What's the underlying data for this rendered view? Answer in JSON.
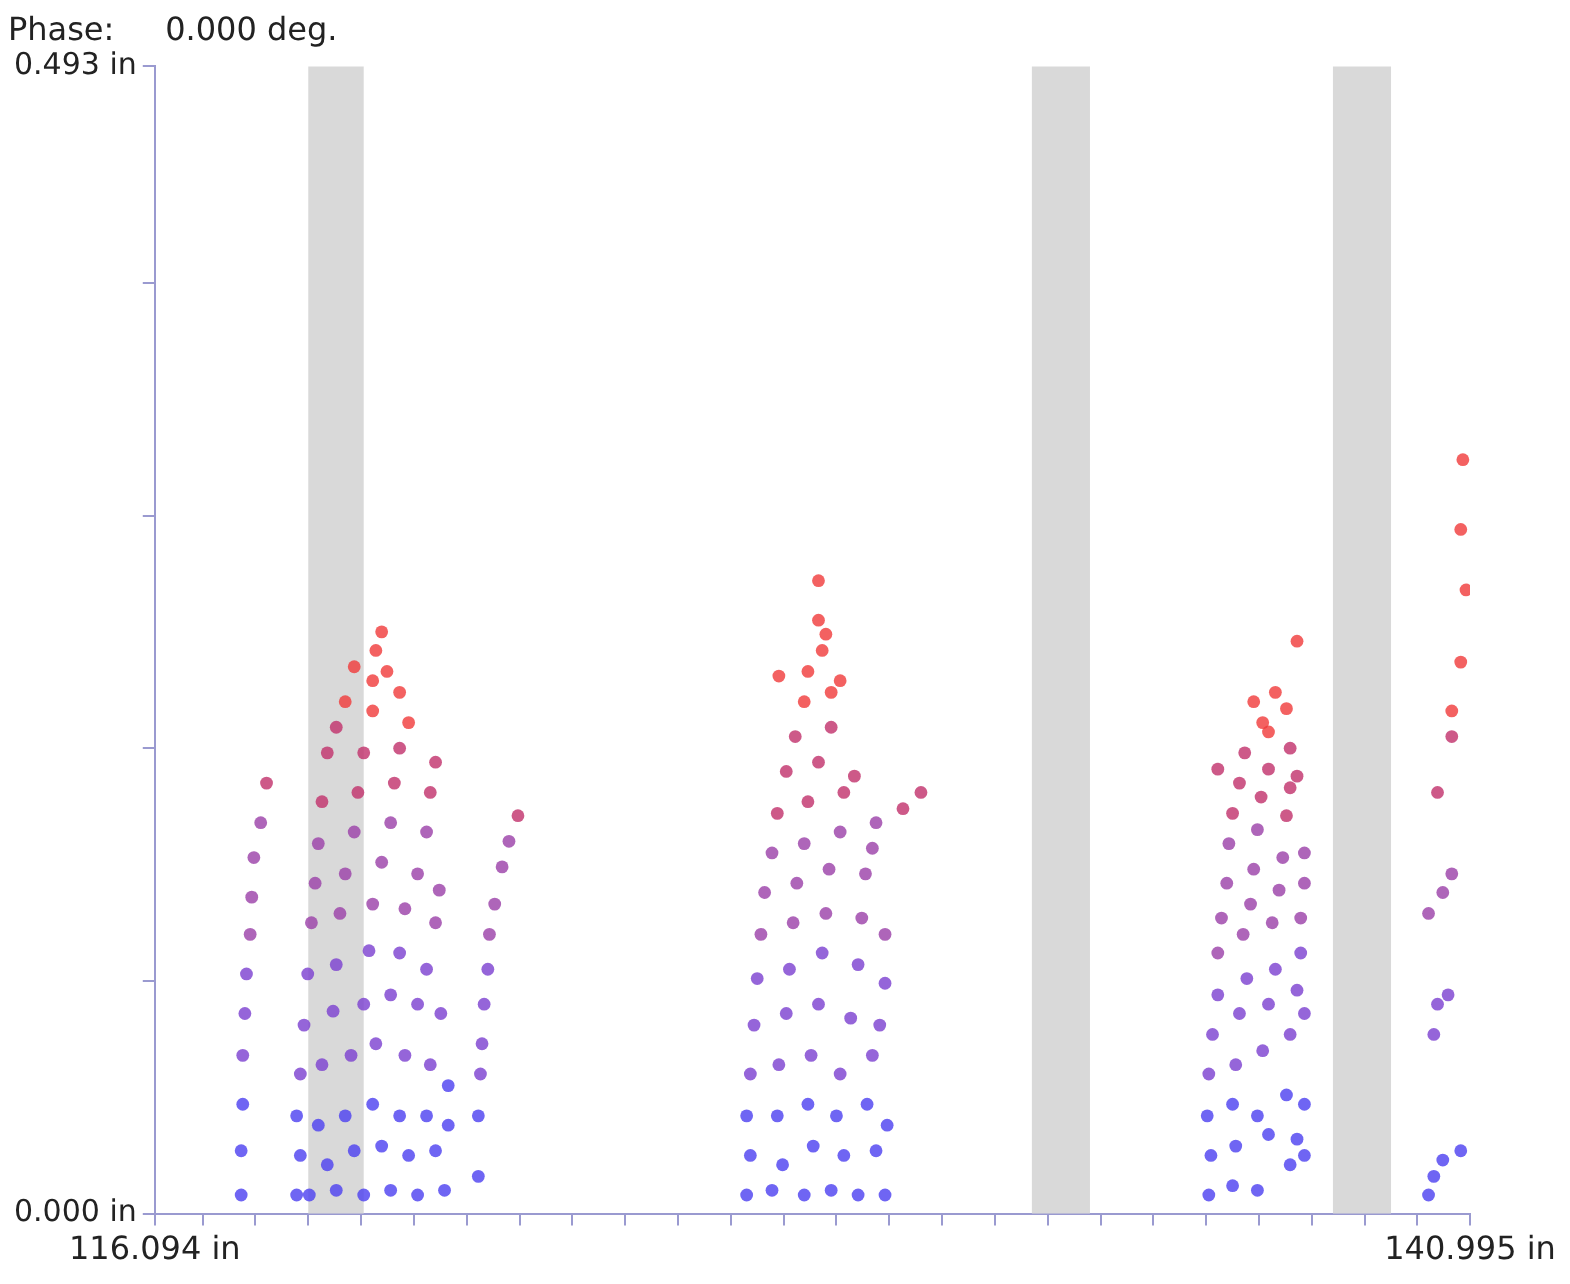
{
  "chart_data": {
    "type": "scatter",
    "title": "Phase:     0.000 deg.",
    "xlim": [
      116.094,
      140.995
    ],
    "ylim": [
      0,
      0.493
    ],
    "xticks": [
      {
        "value": 116.094,
        "label": "116.094 in"
      },
      {
        "value": 117,
        "label": null
      },
      {
        "value": 118,
        "label": null
      },
      {
        "value": 119,
        "label": null
      },
      {
        "value": 120,
        "label": null
      },
      {
        "value": 121,
        "label": null
      },
      {
        "value": 122,
        "label": null
      },
      {
        "value": 123,
        "label": null
      },
      {
        "value": 124,
        "label": null
      },
      {
        "value": 125,
        "label": null
      },
      {
        "value": 126,
        "label": null
      },
      {
        "value": 127,
        "label": null
      },
      {
        "value": 128,
        "label": null
      },
      {
        "value": 129,
        "label": null
      },
      {
        "value": 130,
        "label": null
      },
      {
        "value": 131,
        "label": null
      },
      {
        "value": 132,
        "label": null
      },
      {
        "value": 133,
        "label": null
      },
      {
        "value": 134,
        "label": null
      },
      {
        "value": 135,
        "label": null
      },
      {
        "value": 136,
        "label": null
      },
      {
        "value": 137,
        "label": null
      },
      {
        "value": 138,
        "label": null
      },
      {
        "value": 139,
        "label": null
      },
      {
        "value": 140,
        "label": null
      },
      {
        "value": 140.995,
        "label": "140.995 in"
      }
    ],
    "yticks": [
      {
        "value": 0,
        "label": "0.000 in"
      },
      {
        "value": 0.1,
        "label": null
      },
      {
        "value": 0.2,
        "label": null
      },
      {
        "value": 0.3,
        "label": null
      },
      {
        "value": 0.4,
        "label": null
      },
      {
        "value": 0.493,
        "label": "0.493 in"
      }
    ],
    "grid": false,
    "legend": false,
    "marker": "circle",
    "bands": [
      {
        "axis": "x",
        "from": 119.0,
        "to": 120.05,
        "label": null,
        "color": "#d9d9d9"
      },
      {
        "axis": "x",
        "from": 132.7,
        "to": 133.8,
        "label": null,
        "color": "#d9d9d9"
      },
      {
        "axis": "x",
        "from": 138.4,
        "to": 139.5,
        "label": null,
        "color": "#d9d9d9"
      }
    ],
    "series": [
      {
        "color": "#4b3ef0",
        "x": [
          117.73,
          117.73,
          117.76,
          118.78,
          119.02,
          119.53,
          120.05,
          120.56,
          121.07,
          121.58,
          118.85,
          119.36,
          119.87,
          120.39,
          120.9,
          121.41,
          118.78,
          119.19,
          119.7,
          120.22,
          120.73,
          121.24,
          121.65,
          121.65,
          122.22,
          122.22,
          127.3,
          127.78,
          128.39,
          128.9,
          129.41,
          129.92,
          127.37,
          127.98,
          128.56,
          129.14,
          129.75,
          127.3,
          127.88,
          128.46,
          129.0,
          129.58,
          129.96,
          136.05,
          136.5,
          136.97,
          137.59,
          137.86,
          136.09,
          136.56,
          137.18,
          137.72,
          136.02,
          136.5,
          136.97,
          137.52,
          137.86,
          140.21,
          140.31,
          140.48,
          140.82
        ],
        "values": [
          0.008,
          0.027,
          0.047,
          0.008,
          0.008,
          0.01,
          0.008,
          0.01,
          0.008,
          0.01,
          0.025,
          0.021,
          0.027,
          0.029,
          0.025,
          0.027,
          0.042,
          0.038,
          0.042,
          0.047,
          0.042,
          0.042,
          0.038,
          0.055,
          0.016,
          0.042,
          0.008,
          0.01,
          0.008,
          0.01,
          0.008,
          0.008,
          0.025,
          0.021,
          0.029,
          0.025,
          0.027,
          0.042,
          0.042,
          0.047,
          0.042,
          0.047,
          0.038,
          0.008,
          0.012,
          0.01,
          0.021,
          0.025,
          0.025,
          0.029,
          0.034,
          0.032,
          0.042,
          0.047,
          0.042,
          0.051,
          0.047,
          0.008,
          0.016,
          0.023,
          0.027
        ]
      },
      {
        "color": "#7b3fd0",
        "x": [
          117.76,
          117.8,
          117.83,
          118.85,
          119.26,
          119.81,
          120.28,
          120.83,
          121.31,
          118.92,
          119.47,
          120.05,
          120.56,
          121.07,
          121.51,
          118.99,
          119.53,
          120.15,
          120.73,
          121.24,
          122.26,
          122.29,
          122.33,
          122.4,
          127.37,
          127.91,
          128.52,
          129.07,
          129.68,
          127.44,
          128.05,
          128.66,
          129.27,
          129.82,
          127.5,
          128.11,
          128.73,
          129.41,
          129.92,
          136.05,
          136.56,
          137.07,
          137.59,
          137.86,
          136.12,
          136.63,
          137.18,
          137.72,
          136.22,
          136.77,
          137.31,
          137.79,
          140.31,
          140.38,
          140.58
        ],
        "values": [
          0.068,
          0.086,
          0.103,
          0.06,
          0.064,
          0.068,
          0.073,
          0.068,
          0.064,
          0.081,
          0.087,
          0.09,
          0.094,
          0.09,
          0.086,
          0.103,
          0.107,
          0.113,
          0.112,
          0.105,
          0.06,
          0.073,
          0.09,
          0.105,
          0.06,
          0.064,
          0.068,
          0.06,
          0.068,
          0.081,
          0.086,
          0.09,
          0.084,
          0.081,
          0.101,
          0.105,
          0.112,
          0.107,
          0.099,
          0.06,
          0.064,
          0.07,
          0.077,
          0.086,
          0.077,
          0.086,
          0.09,
          0.096,
          0.094,
          0.101,
          0.105,
          0.112,
          0.077,
          0.09,
          0.094
        ]
      },
      {
        "color": "#9a3fa8",
        "x": [
          117.9,
          117.93,
          117.97,
          118.1,
          119.06,
          119.6,
          120.22,
          120.83,
          121.41,
          119.13,
          119.7,
          120.39,
          121.07,
          121.48,
          119.19,
          119.87,
          120.56,
          121.24,
          122.43,
          122.53,
          122.67,
          122.8,
          129.75,
          127.57,
          128.18,
          128.8,
          129.48,
          129.92,
          127.64,
          128.25,
          128.86,
          129.55,
          127.78,
          128.39,
          129.07,
          129.68,
          136.22,
          136.7,
          137.25,
          137.79,
          136.29,
          136.84,
          137.38,
          137.86,
          136.39,
          136.9,
          137.45,
          137.86,
          136.43,
          136.97,
          140.21,
          140.48,
          140.65
        ],
        "values": [
          0.12,
          0.136,
          0.153,
          0.168,
          0.125,
          0.129,
          0.133,
          0.131,
          0.125,
          0.142,
          0.146,
          0.151,
          0.146,
          0.139,
          0.159,
          0.164,
          0.168,
          0.164,
          0.12,
          0.133,
          0.149,
          0.16,
          0.168,
          0.12,
          0.125,
          0.129,
          0.127,
          0.12,
          0.138,
          0.142,
          0.148,
          0.146,
          0.155,
          0.159,
          0.164,
          0.157,
          0.112,
          0.12,
          0.125,
          0.127,
          0.127,
          0.133,
          0.139,
          0.142,
          0.142,
          0.148,
          0.153,
          0.155,
          0.159,
          0.165,
          0.129,
          0.138,
          0.146
        ]
      },
      {
        "color": "#c0306a",
        "x": [
          118.21,
          119.26,
          119.94,
          120.63,
          121.31,
          119.36,
          120.05,
          120.73,
          121.41,
          119.53,
          122.97,
          130.26,
          130.6,
          127.88,
          128.46,
          129.14,
          128.05,
          128.66,
          129.34,
          128.22,
          128.9,
          137.52,
          136.5,
          137.04,
          137.59,
          136.63,
          137.18,
          137.72,
          136.73,
          137.59,
          136.22,
          140.38,
          140.65
        ],
        "values": [
          0.185,
          0.177,
          0.181,
          0.185,
          0.181,
          0.198,
          0.198,
          0.2,
          0.194,
          0.209,
          0.171,
          0.174,
          0.181,
          0.172,
          0.177,
          0.181,
          0.19,
          0.194,
          0.188,
          0.205,
          0.209,
          0.171,
          0.172,
          0.179,
          0.183,
          0.185,
          0.191,
          0.188,
          0.198,
          0.2,
          0.191,
          0.181,
          0.205
        ]
      },
      {
        "color": "#f03a3a",
        "x": [
          120.22,
          120.9,
          119.7,
          120.22,
          120.73,
          119.87,
          120.28,
          120.39,
          120.49,
          128.39,
          128.9,
          128.46,
          128.73,
          128.66,
          128.8,
          129.07,
          127.91,
          128.66,
          137.18,
          136.9,
          137.31,
          137.52,
          137.72,
          137.07,
          140.65,
          140.82,
          140.92,
          140.82,
          140.86
        ],
        "values": [
          0.216,
          0.211,
          0.22,
          0.229,
          0.224,
          0.235,
          0.242,
          0.25,
          0.233,
          0.22,
          0.224,
          0.233,
          0.242,
          0.255,
          0.249,
          0.229,
          0.231,
          0.272,
          0.207,
          0.22,
          0.224,
          0.217,
          0.246,
          0.211,
          0.216,
          0.237,
          0.268,
          0.294,
          0.324
        ]
      }
    ]
  }
}
